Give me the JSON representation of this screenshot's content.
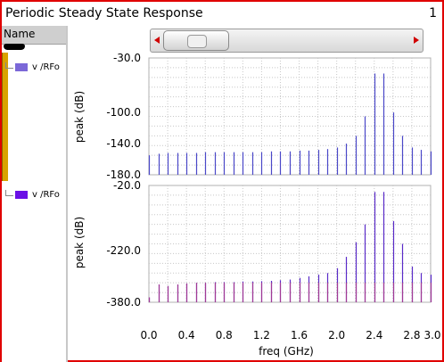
{
  "window": {
    "title": "Periodic Steady State Response",
    "number": "1"
  },
  "sidebar": {
    "header": "Name",
    "signals": [
      {
        "label": "v /RFo",
        "color": "#7b68d8"
      },
      {
        "label": "v /RFo",
        "color": "#6a10e6"
      }
    ]
  },
  "colors": {
    "frame": "#e00000",
    "grid": "#c8c8c8",
    "stem_top": "#4a48c8",
    "stem_bottom": "#5a2ac8",
    "stem_bottom_low": "#c04080"
  },
  "icons": [
    "scroll-left-arrow-icon",
    "scroll-right-arrow-icon"
  ],
  "chart_data": [
    {
      "type": "stem",
      "ylabel": "peak (dB)",
      "ytick_labels": [
        "-30.0",
        "-100.0",
        "-140.0",
        "-180.0"
      ],
      "ylim": [
        -180,
        -30
      ],
      "xlim": [
        0,
        3.0
      ],
      "x": [
        0.0,
        0.1,
        0.2,
        0.3,
        0.4,
        0.5,
        0.6,
        0.7,
        0.8,
        0.9,
        1.0,
        1.1,
        1.2,
        1.3,
        1.4,
        1.5,
        1.6,
        1.7,
        1.8,
        1.9,
        2.0,
        2.1,
        2.2,
        2.3,
        2.4,
        2.5,
        2.6,
        2.7,
        2.8,
        2.9,
        3.0
      ],
      "values": [
        -155,
        -153,
        -152,
        -152,
        -152,
        -152,
        -151,
        -151,
        -151,
        -151,
        -151,
        -151,
        -151,
        -150,
        -150,
        -150,
        -149,
        -149,
        -148,
        -147,
        -145,
        -140,
        -130,
        -105,
        -50,
        -50,
        -100,
        -130,
        -145,
        -148,
        -150
      ]
    },
    {
      "type": "stem",
      "ylabel": "peak (dB)",
      "ytick_labels": [
        "-20.0",
        "-220.0",
        "-380.0"
      ],
      "ylim": [
        -380,
        -20
      ],
      "xlim": [
        0,
        3.0
      ],
      "xlabel": "freq (GHz)",
      "xtick_labels": [
        "0.0",
        "0.4",
        "0.8",
        "1.2",
        "1.6",
        "2.0",
        "2.4",
        "2.8",
        "3.0"
      ],
      "xtick_values": [
        0.0,
        0.4,
        0.8,
        1.2,
        1.6,
        2.0,
        2.4,
        2.8,
        3.0
      ],
      "x": [
        0.0,
        0.1,
        0.2,
        0.3,
        0.4,
        0.5,
        0.6,
        0.7,
        0.8,
        0.9,
        1.0,
        1.1,
        1.2,
        1.3,
        1.4,
        1.5,
        1.6,
        1.7,
        1.8,
        1.9,
        2.0,
        2.1,
        2.2,
        2.3,
        2.4,
        2.5,
        2.6,
        2.7,
        2.8,
        2.9,
        3.0
      ],
      "values": [
        -365,
        -325,
        -330,
        -325,
        -322,
        -320,
        -320,
        -318,
        -318,
        -318,
        -316,
        -316,
        -315,
        -314,
        -312,
        -310,
        -305,
        -300,
        -295,
        -290,
        -275,
        -240,
        -195,
        -140,
        -40,
        -40,
        -130,
        -200,
        -270,
        -290,
        -295
      ]
    }
  ]
}
